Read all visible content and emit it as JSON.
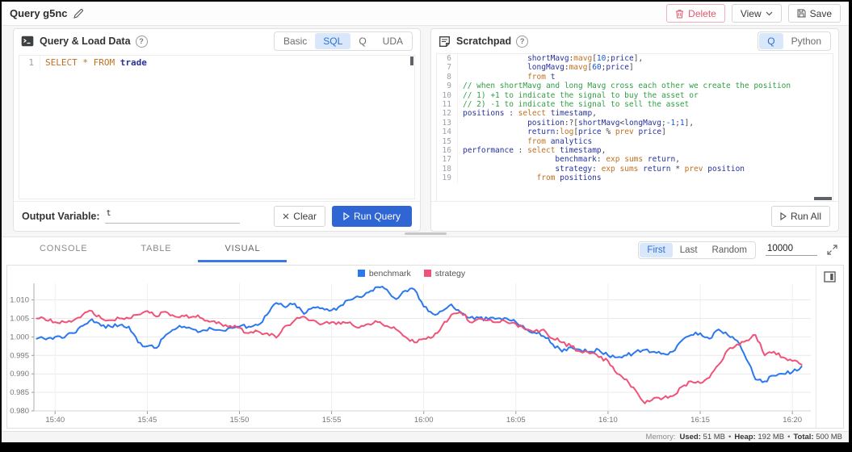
{
  "header": {
    "title": "Query g5nc",
    "delete_label": "Delete",
    "view_label": "View",
    "save_label": "Save"
  },
  "query_panel": {
    "title": "Query & Load Data",
    "tabs": [
      "Basic",
      "SQL",
      "Q",
      "UDA"
    ],
    "active_tab": "SQL",
    "lines": [
      {
        "no": 1,
        "tokens": [
          [
            "kw",
            "SELECT"
          ],
          [
            "pun",
            " "
          ],
          [
            "kw",
            "*"
          ],
          [
            "pun",
            " "
          ],
          [
            "kw",
            "FROM"
          ],
          [
            "pun",
            " "
          ],
          [
            "idb",
            "trade"
          ]
        ]
      }
    ],
    "output_variable_label": "Output Variable:",
    "output_variable_value": "t",
    "clear_label": "Clear",
    "run_label": "Run Query"
  },
  "scratchpad": {
    "title": "Scratchpad",
    "tabs": [
      "Q",
      "Python"
    ],
    "active_tab": "Q",
    "first_line_number": 6,
    "run_all_label": "Run All",
    "lines": [
      [
        [
          "pun",
          "              "
        ],
        [
          "id",
          "shortMavg"
        ],
        [
          "pun",
          ":"
        ],
        [
          "kw",
          "mavg"
        ],
        [
          "pun",
          "["
        ],
        [
          "num",
          "10"
        ],
        [
          "pun",
          ";"
        ],
        [
          "id",
          "price"
        ],
        [
          "pun",
          "],"
        ]
      ],
      [
        [
          "pun",
          "              "
        ],
        [
          "id",
          "longMavg"
        ],
        [
          "pun",
          ":"
        ],
        [
          "kw",
          "mavg"
        ],
        [
          "pun",
          "["
        ],
        [
          "num",
          "60"
        ],
        [
          "pun",
          ";"
        ],
        [
          "id",
          "price"
        ],
        [
          "pun",
          "]"
        ]
      ],
      [
        [
          "pun",
          "              "
        ],
        [
          "kw",
          "from"
        ],
        [
          "pun",
          " "
        ],
        [
          "id",
          "t"
        ]
      ],
      [
        [
          "com",
          "// when shortMavg and long Mavg cross each other we create the position"
        ]
      ],
      [
        [
          "com",
          "// 1) +1 to indicate the signal to buy the asset or"
        ]
      ],
      [
        [
          "com",
          "// 2) -1 to indicate the signal to sell the asset"
        ]
      ],
      [
        [
          "id",
          "positions"
        ],
        [
          "pun",
          " : "
        ],
        [
          "kw",
          "select"
        ],
        [
          "pun",
          " "
        ],
        [
          "id",
          "timestamp"
        ],
        [
          "pun",
          ","
        ]
      ],
      [
        [
          "pun",
          "              "
        ],
        [
          "id",
          "position"
        ],
        [
          "pun",
          ":?["
        ],
        [
          "id",
          "shortMavg"
        ],
        [
          "pun",
          "<"
        ],
        [
          "id",
          "longMavg"
        ],
        [
          "pun",
          ";"
        ],
        [
          "num",
          "-1"
        ],
        [
          "pun",
          ";"
        ],
        [
          "num",
          "1"
        ],
        [
          "pun",
          "],"
        ]
      ],
      [
        [
          "pun",
          "              "
        ],
        [
          "id",
          "return"
        ],
        [
          "pun",
          ":"
        ],
        [
          "kw",
          "log"
        ],
        [
          "pun",
          "["
        ],
        [
          "id",
          "price"
        ],
        [
          "pun",
          " % "
        ],
        [
          "kw",
          "prev"
        ],
        [
          "pun",
          " "
        ],
        [
          "id",
          "price"
        ],
        [
          "pun",
          "]"
        ]
      ],
      [
        [
          "pun",
          "              "
        ],
        [
          "kw",
          "from"
        ],
        [
          "pun",
          " "
        ],
        [
          "id",
          "analytics"
        ]
      ],
      [
        [
          "id",
          "performance"
        ],
        [
          "pun",
          " : "
        ],
        [
          "kw",
          "select"
        ],
        [
          "pun",
          " "
        ],
        [
          "id",
          "timestamp"
        ],
        [
          "pun",
          ","
        ]
      ],
      [
        [
          "pun",
          "                    "
        ],
        [
          "id",
          "benchmark"
        ],
        [
          "pun",
          ": "
        ],
        [
          "kw",
          "exp"
        ],
        [
          "pun",
          " "
        ],
        [
          "kw",
          "sums"
        ],
        [
          "pun",
          " "
        ],
        [
          "id",
          "return"
        ],
        [
          "pun",
          ","
        ]
      ],
      [
        [
          "pun",
          "                    "
        ],
        [
          "id",
          "strategy"
        ],
        [
          "pun",
          ": "
        ],
        [
          "kw",
          "exp"
        ],
        [
          "pun",
          " "
        ],
        [
          "kw",
          "sums"
        ],
        [
          "pun",
          " "
        ],
        [
          "id",
          "return"
        ],
        [
          "pun",
          " * "
        ],
        [
          "kw",
          "prev"
        ],
        [
          "pun",
          " "
        ],
        [
          "id",
          "position"
        ]
      ],
      [
        [
          "pun",
          "                "
        ],
        [
          "kw",
          "from"
        ],
        [
          "pun",
          " "
        ],
        [
          "id",
          "positions"
        ]
      ]
    ]
  },
  "results": {
    "tabs": [
      "CONSOLE",
      "TABLE",
      "VISUAL"
    ],
    "active_tab": "VISUAL",
    "sample_modes": [
      "First",
      "Last",
      "Random"
    ],
    "active_mode": "First",
    "row_limit": "10000"
  },
  "status_bar": {
    "memory_label": "Memory:",
    "separator": "•",
    "items": [
      {
        "label": "Used:",
        "value": "51 MB"
      },
      {
        "label": "Heap:",
        "value": "192 MB"
      },
      {
        "label": "Total:",
        "value": "500 MB"
      }
    ]
  },
  "chart_data": {
    "type": "line",
    "title": "",
    "xlabel": "",
    "ylabel": "",
    "legend_position": "top",
    "grid": true,
    "x_start": "15:39",
    "x_step_seconds": 30,
    "x_ticks": [
      "15:40",
      "15:45",
      "15:50",
      "15:55",
      "16:00",
      "16:05",
      "16:10",
      "16:15",
      "16:20"
    ],
    "y_ticks": [
      0.98,
      0.985,
      0.99,
      0.995,
      1.0,
      1.005,
      1.01
    ],
    "ylim": [
      0.98,
      1.0145
    ],
    "series": [
      {
        "name": "benchmark",
        "color": "#2b77f0",
        "values": [
          0.9995,
          0.9993,
          1.0,
          0.9998,
          1.001,
          1.003,
          1.0048,
          1.003,
          1.0028,
          1.0032,
          1.0028,
          0.9985,
          0.9975,
          0.997,
          1.0005,
          1.002,
          1.0028,
          1.002,
          1.0018,
          1.0022,
          1.0018,
          1.0025,
          1.0028,
          1.0028,
          1.0032,
          1.006,
          1.0092,
          1.008,
          1.009,
          1.0062,
          1.008,
          1.0078,
          1.0072,
          1.0085,
          1.01,
          1.0108,
          1.012,
          1.0135,
          1.0128,
          1.0102,
          1.0125,
          1.0128,
          1.0082,
          1.0062,
          1.007,
          1.0088,
          1.0065,
          1.0052,
          1.0052,
          1.0048,
          1.005,
          1.005,
          1.004,
          1.0022,
          1.0012,
          1.0002,
          0.998,
          0.996,
          0.9972,
          0.9965,
          0.996,
          0.9965,
          0.995,
          0.9945,
          0.995,
          0.996,
          0.9965,
          0.996,
          0.9955,
          0.996,
          0.999,
          1.0005,
          1.001,
          0.9995,
          1.002,
          1.0005,
          0.999,
          0.994,
          0.9885,
          0.988,
          0.9895,
          0.99,
          0.9905,
          0.992
        ]
      },
      {
        "name": "strategy",
        "color": "#ef5378",
        "values": [
          1.005,
          1.0045,
          1.004,
          1.004,
          1.0045,
          1.006,
          1.007,
          1.005,
          1.0045,
          1.005,
          1.005,
          1.006,
          1.007,
          1.0055,
          1.0068,
          1.0055,
          1.0056,
          1.0055,
          1.005,
          1.0042,
          1.0035,
          1.003,
          1.0025,
          1.001,
          1.0015,
          1.001,
          0.9998,
          1.003,
          1.0045,
          1.0055,
          1.0045,
          1.0035,
          1.004,
          1.0035,
          1.004,
          1.0025,
          1.0035,
          1.004,
          1.003,
          1.002,
          1.0,
          0.9985,
          0.9995,
          1.0,
          1.003,
          1.006,
          1.0068,
          1.004,
          1.005,
          1.0045,
          1.004,
          1.004,
          1.0035,
          1.002,
          1.0015,
          1.002,
          0.9995,
          0.9985,
          0.9975,
          0.996,
          0.9955,
          0.9945,
          0.9935,
          0.99,
          0.9885,
          0.9855,
          0.982,
          0.9835,
          0.9835,
          0.984,
          0.9865,
          0.988,
          0.9875,
          0.989,
          0.9925,
          0.9965,
          0.998,
          0.999,
          1.0005,
          0.995,
          0.996,
          0.9945,
          0.9935,
          0.9925
        ]
      }
    ]
  }
}
